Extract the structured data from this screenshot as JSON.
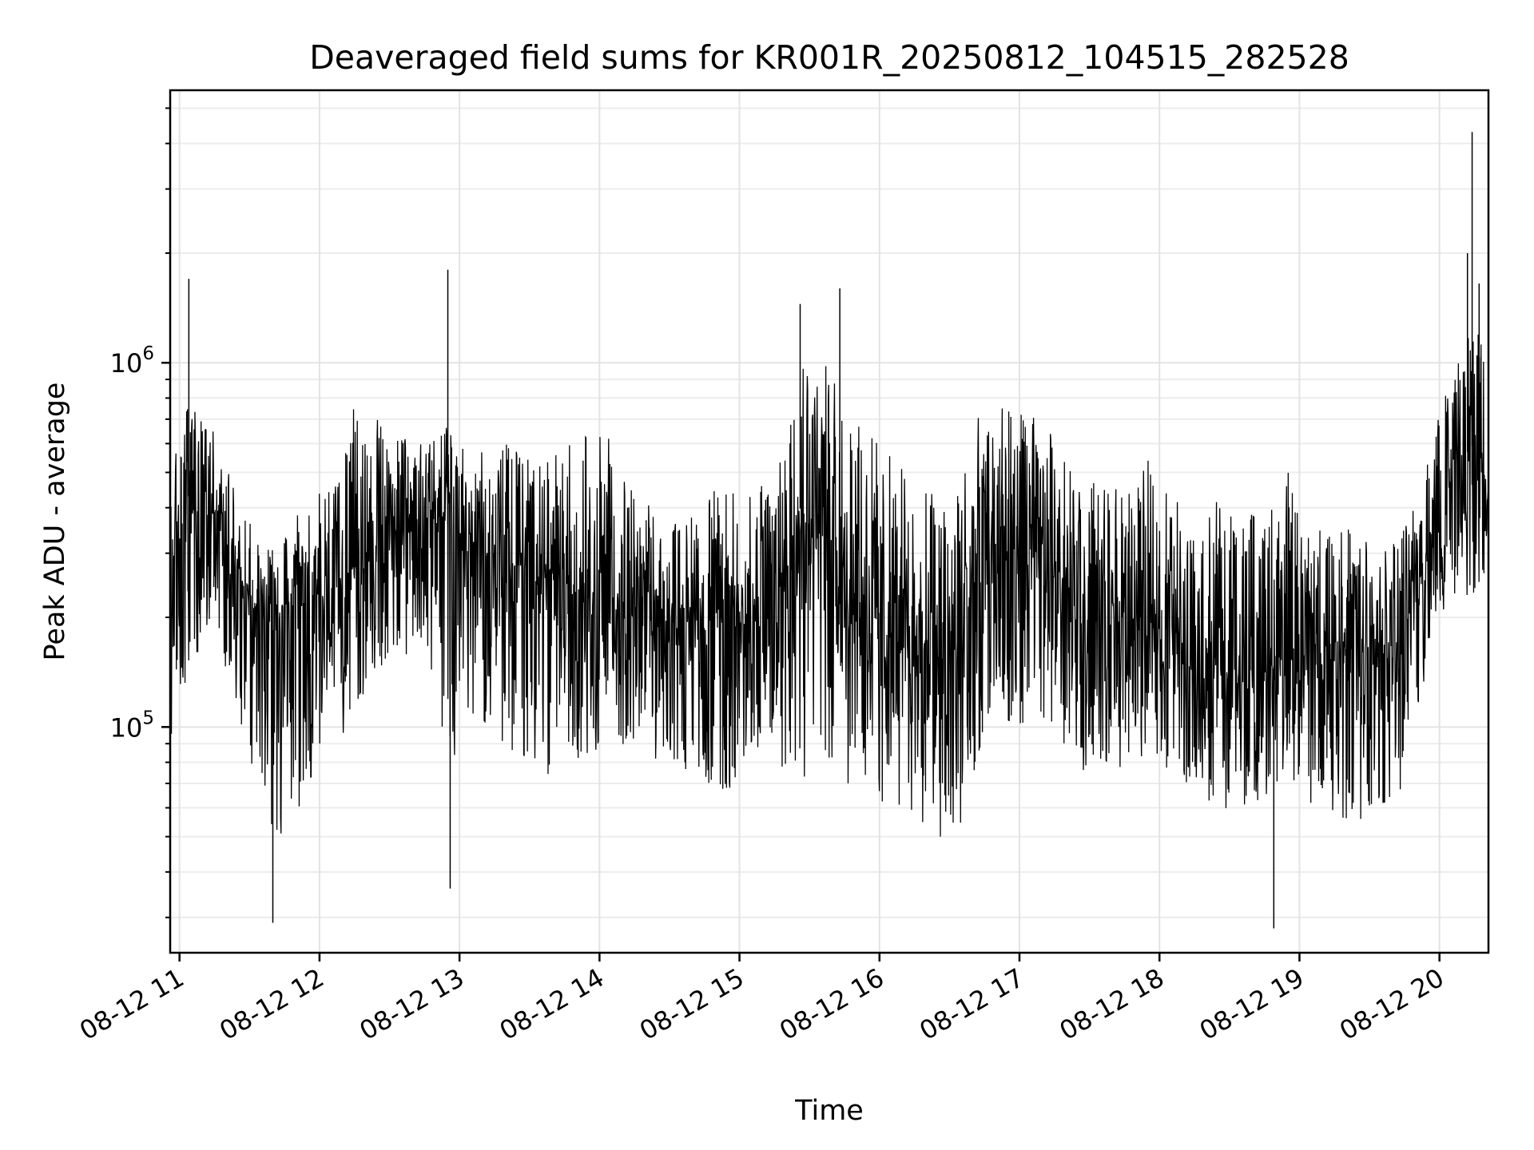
{
  "chart_data": {
    "type": "line",
    "title": "Deaveraged field sums for KR001R_20250812_104515_282528",
    "xlabel": "Time",
    "ylabel": "Peak ADU - average",
    "x_axis": {
      "type": "datetime",
      "range": [
        "2025-08-12 10:56",
        "2025-08-12 20:21"
      ],
      "tick_values": [
        "2025-08-12 11:00",
        "2025-08-12 12:00",
        "2025-08-12 13:00",
        "2025-08-12 14:00",
        "2025-08-12 15:00",
        "2025-08-12 16:00",
        "2025-08-12 17:00",
        "2025-08-12 18:00",
        "2025-08-12 19:00",
        "2025-08-12 20:00"
      ],
      "tick_labels": [
        "08-12 11",
        "08-12 12",
        "08-12 13",
        "08-12 14",
        "08-12 15",
        "08-12 16",
        "08-12 17",
        "08-12 18",
        "08-12 19",
        "08-12 20"
      ]
    },
    "y_axis": {
      "scale": "log",
      "range": [
        24000,
        5600000
      ],
      "tick_values": [
        100000,
        1000000
      ],
      "tick_labels": [
        {
          "base": "10",
          "exp": "5"
        },
        {
          "base": "10",
          "exp": "6"
        }
      ]
    },
    "grid": true,
    "line_color": "#000000",
    "series": [
      {
        "x": [
          "2025-08-12 10:56",
          "2025-08-12 11:05",
          "2025-08-12 11:15",
          "2025-08-12 11:25",
          "2025-08-12 11:35",
          "2025-08-12 11:45",
          "2025-08-12 11:55",
          "2025-08-12 12:05",
          "2025-08-12 12:15",
          "2025-08-12 12:25",
          "2025-08-12 12:35",
          "2025-08-12 12:45",
          "2025-08-12 12:55",
          "2025-08-12 13:05",
          "2025-08-12 13:15",
          "2025-08-12 13:25",
          "2025-08-12 13:35",
          "2025-08-12 13:45",
          "2025-08-12 13:55",
          "2025-08-12 14:05",
          "2025-08-12 14:15",
          "2025-08-12 14:25",
          "2025-08-12 14:35",
          "2025-08-12 14:45",
          "2025-08-12 14:55",
          "2025-08-12 15:05",
          "2025-08-12 15:15",
          "2025-08-12 15:25",
          "2025-08-12 15:35",
          "2025-08-12 15:45",
          "2025-08-12 15:55",
          "2025-08-12 16:05",
          "2025-08-12 16:15",
          "2025-08-12 16:25",
          "2025-08-12 16:35",
          "2025-08-12 16:45",
          "2025-08-12 16:55",
          "2025-08-12 17:05",
          "2025-08-12 17:15",
          "2025-08-12 17:25",
          "2025-08-12 17:35",
          "2025-08-12 17:45",
          "2025-08-12 17:55",
          "2025-08-12 18:05",
          "2025-08-12 18:15",
          "2025-08-12 18:25",
          "2025-08-12 18:35",
          "2025-08-12 18:45",
          "2025-08-12 18:55",
          "2025-08-12 19:05",
          "2025-08-12 19:15",
          "2025-08-12 19:25",
          "2025-08-12 19:35",
          "2025-08-12 19:45",
          "2025-08-12 19:55",
          "2025-08-12 20:05",
          "2025-08-12 20:15",
          "2025-08-12 20:21"
        ],
        "y": [
          300000,
          450000,
          400000,
          260000,
          200000,
          170000,
          230000,
          220000,
          280000,
          330000,
          350000,
          380000,
          360000,
          300000,
          290000,
          270000,
          260000,
          240000,
          230000,
          220000,
          210000,
          200000,
          190000,
          200000,
          210000,
          195000,
          190000,
          400000,
          380000,
          260000,
          200000,
          180000,
          160000,
          150000,
          170000,
          260000,
          290000,
          300000,
          280000,
          220000,
          200000,
          180000,
          190000,
          185000,
          170000,
          155000,
          140000,
          145000,
          150000,
          165000,
          170000,
          160000,
          150000,
          190000,
          300000,
          500000,
          600000,
          500000
        ],
        "y_upper": [
          500000,
          850000,
          650000,
          420000,
          320000,
          340000,
          420000,
          480000,
          760000,
          700000,
          640000,
          590000,
          690000,
          560000,
          580000,
          620000,
          520000,
          600000,
          660000,
          620000,
          430000,
          400000,
          360000,
          430000,
          470000,
          430000,
          540000,
          1200000,
          1100000,
          760000,
          680000,
          560000,
          470000,
          470000,
          540000,
          800000,
          750000,
          720000,
          640000,
          470000,
          490000,
          430000,
          540000,
          460000,
          400000,
          430000,
          390000,
          380000,
          510000,
          340000,
          390000,
          340000,
          310000,
          380000,
          580000,
          1000000,
          1500000,
          1300000
        ],
        "y_lower": [
          90000,
          150000,
          180000,
          110000,
          55000,
          45000,
          70000,
          80000,
          110000,
          140000,
          150000,
          180000,
          75000,
          110000,
          95000,
          75000,
          70000,
          85000,
          80000,
          85000,
          90000,
          80000,
          75000,
          70000,
          65000,
          85000,
          80000,
          70000,
          75000,
          70000,
          55000,
          60000,
          55000,
          50000,
          50000,
          95000,
          100000,
          95000,
          85000,
          75000,
          80000,
          75000,
          85000,
          75000,
          65000,
          60000,
          55000,
          65000,
          70000,
          60000,
          55000,
          55000,
          55000,
          60000,
          150000,
          230000,
          220000,
          280000
        ],
        "spikes": [
          {
            "x": "2025-08-12 11:04",
            "y": 1700000
          },
          {
            "x": "2025-08-12 11:40",
            "y": 29000
          },
          {
            "x": "2025-08-12 12:55",
            "y": 1800000
          },
          {
            "x": "2025-08-12 12:56",
            "y": 36000
          },
          {
            "x": "2025-08-12 15:26",
            "y": 1450000
          },
          {
            "x": "2025-08-12 15:43",
            "y": 1600000
          },
          {
            "x": "2025-08-12 18:49",
            "y": 28000
          },
          {
            "x": "2025-08-12 20:14",
            "y": 4300000
          },
          {
            "x": "2025-08-12 20:12",
            "y": 2000000
          },
          {
            "x": "2025-08-12 20:17",
            "y": 1650000
          }
        ]
      }
    ]
  }
}
